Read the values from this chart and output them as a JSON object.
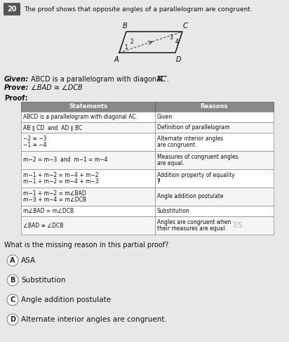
{
  "question_number": "20",
  "title_text": "The proof shows that opposite angles of a parallelogram are congruent.",
  "given_line1": "Given: ABCD is a parallelogram with diagonal AC̅ .",
  "prove_line": "Prove: ∠BAD ≅ ∠DCB",
  "proof_label": "Proof:",
  "question_text": "What is the missing reason in this partial proof?",
  "table_headers": [
    "Statements",
    "Reasons"
  ],
  "table_rows": [
    [
      "ABCD is a parallelogram with diagonal AC.",
      "Given"
    ],
    [
      "AB ∥ CD  and  AD ∥ BC",
      "Definition of parallelogram"
    ],
    [
      "−2 ≅ −3\n−1 ≅ −4",
      "Alternate interior angles\nare congruent."
    ],
    [
      "m−2 = m−3  and  m−1 = m−4",
      "Measures of congruent angles\nare equal."
    ],
    [
      "m−1 + m−2 = m−4 + m−2\nm−1 + m−2 = m−4 + m−3",
      "Addition property of equality\n?"
    ],
    [
      "m−1 + m−2 = m∠BAD\nm−3 + m−4 = m∠DCB",
      "Angle addition postulate"
    ],
    [
      "m∠BAD = m∠DCB",
      "Substitution"
    ],
    [
      "∠BAD ≅ ∠DCB",
      "Angles are congruent when\ntheir measures are equal."
    ]
  ],
  "options": [
    [
      "A",
      "ASA"
    ],
    [
      "B",
      "Substitution"
    ],
    [
      "C",
      "Angle addition postulate"
    ],
    [
      "D",
      "Alternate interior angles are congruent."
    ]
  ],
  "header_bg": "#888888",
  "header_fg": "#ffffff",
  "row_bg": "#ffffff",
  "row_bg_alt": "#f5f5f5",
  "bg_color": "#e8e8e8",
  "score_text": "7/5",
  "col_split": 0.53
}
